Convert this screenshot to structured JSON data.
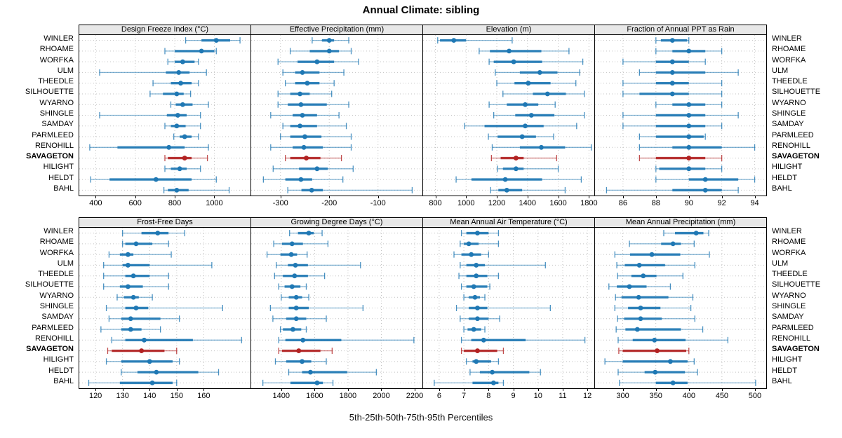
{
  "title": "Annual Climate: sibling",
  "caption": "5th-25th-50th-75th-95th Percentiles",
  "percentiles": [
    5,
    25,
    50,
    75,
    95
  ],
  "stations": [
    "WINLER",
    "RHOAME",
    "WORFKA",
    "ULM",
    "THEEDLE",
    "SILHOUETTE",
    "WYARNO",
    "SHINGLE",
    "SAMDAY",
    "PARMLEED",
    "RENOHILL",
    "SAVAGETON",
    "HILIGHT",
    "HELDT",
    "BAHL"
  ],
  "highlight_station": "SAVAGETON",
  "colors": {
    "blue": "#1F78B4",
    "red": "#B22222",
    "grid": "#C3C3C3",
    "strip_bg": "#E8E8E8"
  },
  "chart_data": [
    {
      "type": "scatter",
      "title": "Design Freeze Index (°C)",
      "xlim": [
        317,
        1183
      ],
      "ticks": [
        400,
        600,
        800,
        1000
      ],
      "values": [
        [
          855,
          935,
          1010,
          1080,
          1130
        ],
        [
          750,
          800,
          935,
          1000,
          1010
        ],
        [
          765,
          800,
          840,
          900,
          920
        ],
        [
          420,
          755,
          820,
          875,
          960
        ],
        [
          690,
          780,
          830,
          885,
          920
        ],
        [
          675,
          740,
          810,
          845,
          880
        ],
        [
          780,
          805,
          840,
          890,
          970
        ],
        [
          420,
          760,
          815,
          860,
          930
        ],
        [
          750,
          780,
          810,
          855,
          930
        ],
        [
          795,
          825,
          850,
          885,
          920
        ],
        [
          370,
          510,
          770,
          850,
          970
        ],
        [
          750,
          765,
          850,
          885,
          965
        ],
        [
          750,
          780,
          825,
          860,
          930
        ],
        [
          375,
          470,
          705,
          885,
          1010
        ],
        [
          745,
          765,
          810,
          870,
          1075
        ]
      ]
    },
    {
      "type": "scatter",
      "title": "Effective Precipitation (mm)",
      "xlim": [
        -360,
        -9
      ],
      "ticks": [
        -300,
        -200,
        -100
      ],
      "values": [
        [
          -235,
          -215,
          -200,
          -190,
          -160
        ],
        [
          -280,
          -240,
          -200,
          -180,
          -155
        ],
        [
          -305,
          -265,
          -225,
          -190,
          -140
        ],
        [
          -295,
          -270,
          -255,
          -220,
          -170
        ],
        [
          -290,
          -270,
          -245,
          -220,
          -190
        ],
        [
          -305,
          -280,
          -260,
          -240,
          -195
        ],
        [
          -305,
          -285,
          -258,
          -205,
          -160
        ],
        [
          -320,
          -275,
          -255,
          -225,
          -180
        ],
        [
          -295,
          -280,
          -260,
          -225,
          -165
        ],
        [
          -300,
          -280,
          -250,
          -216,
          -155
        ],
        [
          -320,
          -275,
          -252,
          -213,
          -155
        ],
        [
          -290,
          -280,
          -247,
          -218,
          -175
        ],
        [
          -315,
          -262,
          -225,
          -203,
          -151
        ],
        [
          -335,
          -290,
          -258,
          -235,
          -172
        ],
        [
          -285,
          -257,
          -236,
          -213,
          -30
        ]
      ]
    },
    {
      "type": "scatter",
      "title": "Elevation (m)",
      "xlim": [
        720,
        1835
      ],
      "ticks": [
        800,
        1000,
        1200,
        1400,
        1600,
        1800
      ],
      "values": [
        [
          815,
          830,
          920,
          1000,
          1300
        ],
        [
          1085,
          1155,
          1280,
          1490,
          1670
        ],
        [
          1150,
          1180,
          1310,
          1495,
          1760
        ],
        [
          1190,
          1350,
          1480,
          1595,
          1740
        ],
        [
          1200,
          1315,
          1405,
          1550,
          1715
        ],
        [
          1240,
          1435,
          1530,
          1650,
          1770
        ],
        [
          1150,
          1265,
          1385,
          1470,
          1580
        ],
        [
          1180,
          1320,
          1425,
          1575,
          1770
        ],
        [
          990,
          1120,
          1385,
          1505,
          1720
        ],
        [
          1145,
          1205,
          1365,
          1455,
          1570
        ],
        [
          1170,
          1350,
          1490,
          1645,
          1815
        ],
        [
          1165,
          1225,
          1325,
          1375,
          1590
        ],
        [
          1205,
          1240,
          1325,
          1375,
          1600
        ],
        [
          935,
          1035,
          1255,
          1495,
          1750
        ],
        [
          1160,
          1210,
          1265,
          1365,
          1645
        ]
      ]
    },
    {
      "type": "scatter",
      "title": "Fraction of Annual PPT as Rain",
      "xlim": [
        84.3,
        94.7
      ],
      "ticks": [
        86,
        88,
        90,
        92,
        94
      ],
      "values": [
        [
          88,
          88.3,
          89,
          89.9,
          90
        ],
        [
          88,
          89,
          90,
          91,
          92
        ],
        [
          86,
          88,
          89,
          90,
          91
        ],
        [
          87,
          88,
          89,
          91,
          93
        ],
        [
          86,
          88,
          89,
          90,
          92
        ],
        [
          86,
          87,
          89,
          90,
          92
        ],
        [
          88,
          89,
          90,
          91,
          92
        ],
        [
          86,
          88,
          90,
          91,
          93
        ],
        [
          86,
          88,
          90,
          91,
          92
        ],
        [
          87,
          88,
          90,
          90.9,
          91
        ],
        [
          87,
          89,
          90,
          92,
          94
        ],
        [
          87,
          88,
          90,
          91,
          92
        ],
        [
          88,
          88.2,
          90,
          91,
          92
        ],
        [
          88,
          90,
          91,
          93,
          94
        ],
        [
          85,
          89,
          91,
          92,
          93
        ]
      ]
    },
    {
      "type": "scatter",
      "title": "Frost-Free Days",
      "xlim": [
        114,
        177.3
      ],
      "ticks": [
        120,
        130,
        140,
        150,
        160
      ],
      "values": [
        [
          130,
          137,
          143,
          147,
          153
        ],
        [
          130,
          131,
          135,
          141,
          147
        ],
        [
          125,
          129,
          132,
          134,
          148
        ],
        [
          123,
          130,
          132,
          140,
          163
        ],
        [
          123,
          131,
          134,
          140,
          147
        ],
        [
          123,
          129,
          132,
          137.5,
          147
        ],
        [
          128,
          130.5,
          134,
          136,
          141
        ],
        [
          124,
          131,
          135,
          139.5,
          167
        ],
        [
          125,
          129.5,
          133,
          144,
          151
        ],
        [
          122,
          129.5,
          133,
          137,
          144
        ],
        [
          126,
          131,
          138,
          156,
          174
        ],
        [
          124.5,
          126,
          137,
          145.5,
          150
        ],
        [
          124,
          129.5,
          140,
          148.5,
          151
        ],
        [
          129.5,
          135.5,
          142.5,
          158,
          165.5
        ],
        [
          117.5,
          129,
          141,
          148.5,
          150
        ]
      ]
    },
    {
      "type": "scatter",
      "title": "Growing Degree Days (°C)",
      "xlim": [
        1220,
        2246
      ],
      "ticks": [
        1400,
        1600,
        1800,
        2000,
        2200
      ],
      "values": [
        [
          1450,
          1500,
          1565,
          1595,
          1645
        ],
        [
          1355,
          1405,
          1465,
          1530,
          1680
        ],
        [
          1315,
          1395,
          1460,
          1495,
          1555
        ],
        [
          1370,
          1440,
          1485,
          1560,
          1875
        ],
        [
          1360,
          1410,
          1480,
          1560,
          1660
        ],
        [
          1385,
          1420,
          1465,
          1515,
          1550
        ],
        [
          1400,
          1445,
          1490,
          1525,
          1565
        ],
        [
          1335,
          1445,
          1490,
          1565,
          1890
        ],
        [
          1350,
          1430,
          1490,
          1550,
          1670
        ],
        [
          1395,
          1410,
          1470,
          1520,
          1550
        ],
        [
          1385,
          1425,
          1530,
          1760,
          2195
        ],
        [
          1385,
          1405,
          1505,
          1635,
          1705
        ],
        [
          1365,
          1430,
          1525,
          1580,
          1670
        ],
        [
          1445,
          1525,
          1575,
          1795,
          1970
        ],
        [
          1290,
          1455,
          1615,
          1650,
          1710
        ]
      ]
    },
    {
      "type": "scatter",
      "title": "Mean Annual Air Temperature (°C)",
      "xlim": [
        5.35,
        12.28
      ],
      "ticks": [
        6,
        7,
        8,
        9,
        10,
        11,
        12
      ],
      "values": [
        [
          6.9,
          7.1,
          7.55,
          8.0,
          8.4
        ],
        [
          6.85,
          7.0,
          7.2,
          7.6,
          8.4
        ],
        [
          6.6,
          6.9,
          7.3,
          7.7,
          8.0
        ],
        [
          6.85,
          7.1,
          7.5,
          7.85,
          10.3
        ],
        [
          6.8,
          7.1,
          7.5,
          7.95,
          8.4
        ],
        [
          6.9,
          7.1,
          7.4,
          7.95,
          8.05
        ],
        [
          7.0,
          7.2,
          7.45,
          7.65,
          7.85
        ],
        [
          6.7,
          7.2,
          7.55,
          7.95,
          10.5
        ],
        [
          6.85,
          7.2,
          7.55,
          8.0,
          8.45
        ],
        [
          7.0,
          7.15,
          7.4,
          7.7,
          7.85
        ],
        [
          6.9,
          7.3,
          7.8,
          9.5,
          11.9
        ],
        [
          6.9,
          7.0,
          7.55,
          8.35,
          8.6
        ],
        [
          7.1,
          7.35,
          7.5,
          8.1,
          8.4
        ],
        [
          7.25,
          7.65,
          8.15,
          9.65,
          10.1
        ],
        [
          5.8,
          7.35,
          8.2,
          8.4,
          8.6
        ]
      ]
    },
    {
      "type": "scatter",
      "title": "Mean Annual Precipitation (mm)",
      "xlim": [
        258,
        517
      ],
      "ticks": [
        300,
        350,
        400,
        450,
        500
      ],
      "values": [
        [
          362,
          379,
          411,
          422,
          430
        ],
        [
          310,
          358,
          376,
          388,
          408
        ],
        [
          288,
          311,
          344,
          387,
          431
        ],
        [
          291,
          303,
          325,
          364,
          409
        ],
        [
          292,
          313,
          331,
          351,
          391
        ],
        [
          279,
          291,
          310,
          336,
          372
        ],
        [
          289,
          298,
          324,
          369,
          406
        ],
        [
          288,
          308,
          327,
          357,
          403
        ],
        [
          292,
          302,
          327,
          359,
          409
        ],
        [
          290,
          304,
          322,
          388,
          421
        ],
        [
          293,
          315,
          348,
          395,
          459
        ],
        [
          294,
          300,
          352,
          396,
          400
        ],
        [
          273,
          300,
          372,
          398,
          408
        ],
        [
          293,
          333,
          349,
          394,
          413
        ],
        [
          295,
          350,
          376,
          398,
          501
        ]
      ]
    }
  ]
}
